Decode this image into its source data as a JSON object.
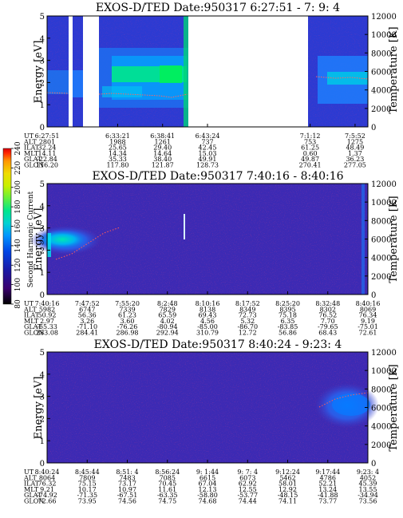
{
  "chart_data": [
    {
      "type": "heatmap",
      "title": "EXOS-D/TED   Date:950317  6:27:51 - 7: 9: 4",
      "ylabel": "Energy [eV]",
      "y2label": "Temperature [K]",
      "ylim": [
        0,
        5
      ],
      "y2lim": [
        0,
        12000
      ],
      "yticks": [
        "0",
        "1",
        "2",
        "3",
        "4",
        "5"
      ],
      "y2ticks": [
        "0",
        "2000",
        "4000",
        "6000",
        "8000",
        "10000",
        "12000"
      ],
      "row_labels": [
        "UT",
        "ALT",
        "ILAT",
        "MLT",
        "GLAT",
        "GLON"
      ],
      "columns": [
        [
          "6:27:51",
          "2801",
          "32.24",
          "14.11",
          "-22.84",
          "116.20"
        ],
        [
          "6:33:21",
          "1988",
          "25.65",
          "14.34",
          "35.33",
          "117.80"
        ],
        [
          "6:38:41",
          "1261",
          "29.40",
          "14.64",
          "38.40",
          "121.87"
        ],
        [
          "6:43:24",
          "737",
          "42.45",
          "15.03",
          "49.91",
          "128.73"
        ],
        [
          "7:1:12",
          "753",
          "61.25",
          "0.60",
          "49.87",
          "270.41"
        ],
        [
          "7:5:52",
          "1275",
          "48.49",
          "1.37",
          "36.23",
          "277.05"
        ]
      ],
      "column_x": [
        0,
        0.22,
        0.36,
        0.5,
        0.82,
        0.96
      ]
    },
    {
      "type": "heatmap",
      "title": "EXOS-D/TED   Date:950317  7:40:16 - 8:40:16",
      "ylabel": "Energy [eV]",
      "y2label": "Temperature [K]",
      "ylim": [
        0,
        5
      ],
      "y2lim": [
        0,
        12000
      ],
      "yticks": [
        "0",
        "1",
        "2",
        "3",
        "4",
        "5"
      ],
      "y2ticks": [
        "0",
        "2000",
        "4000",
        "6000",
        "8000",
        "10000",
        "12000"
      ],
      "row_labels": [
        "UT",
        "ALT",
        "ILAT",
        "MLT",
        "GLAT",
        "GLON"
      ],
      "columns": [
        [
          "7:40:16",
          "5982",
          "50.92",
          "2.97",
          "-65.33",
          "283.08"
        ],
        [
          "7:47:52",
          "6747",
          "56.36",
          "3.26",
          "-71.10",
          "284.41"
        ],
        [
          "7:55:20",
          "7339",
          "61.23",
          "3.60",
          "-76.26",
          "286.98"
        ],
        [
          "8:2:48",
          "7829",
          "65.59",
          "4.02",
          "-80.94",
          "292.94"
        ],
        [
          "8:10:16",
          "8138",
          "69.43",
          "4.56",
          "-85.00",
          "310.79"
        ],
        [
          "8:17:52",
          "8349",
          "72.73",
          "5.32",
          "-86.70",
          "12.72"
        ],
        [
          "8:25:20",
          "8395",
          "75.18",
          "6.35",
          "-83.85",
          "56.86"
        ],
        [
          "8:32:48",
          "8302",
          "76.52",
          "7.70",
          "-79.65",
          "68.43"
        ],
        [
          "8:40:16",
          "8069",
          "76.34",
          "9.19",
          "-75.01",
          "72.61"
        ]
      ],
      "column_x": [
        0,
        0.125,
        0.25,
        0.375,
        0.5,
        0.625,
        0.75,
        0.875,
        1.0
      ]
    },
    {
      "type": "heatmap",
      "title": "EXOS-D/TED   Date:950317  8:40:24 - 9:23: 4",
      "ylabel": "Energy [eV]",
      "y2label": "Temperature [K]",
      "ylim": [
        0,
        5
      ],
      "y2lim": [
        0,
        12000
      ],
      "yticks": [
        "0",
        "1",
        "2",
        "3",
        "4",
        "5"
      ],
      "y2ticks": [
        "0",
        "2000",
        "4000",
        "6000",
        "8000",
        "10000",
        "12000"
      ],
      "row_labels": [
        "UT",
        "ALT",
        "ILAT",
        "MLT",
        "GLAT",
        "GLON"
      ],
      "columns": [
        [
          "8:40:24",
          "8064",
          "76.32",
          "9.21",
          "-74.92",
          "72.66"
        ],
        [
          "8:45:44",
          "7809",
          "75.15",
          "10.17",
          "-71.35",
          "73.95"
        ],
        [
          "8:51: 4",
          "7483",
          "73.17",
          "10.97",
          "-67.51",
          "74.56"
        ],
        [
          "8:56:24",
          "7085",
          "70.45",
          "11.61",
          "-63.35",
          "74.75"
        ],
        [
          "9: 1:44",
          "6615",
          "67.04",
          "12.13",
          "-58.80",
          "74.68"
        ],
        [
          "9: 7: 4",
          "6073",
          "62.92",
          "12.55",
          "-53.77",
          "74.44"
        ],
        [
          "9:12:24",
          "5462",
          "58.01",
          "12.92",
          "-48.15",
          "74.11"
        ],
        [
          "9:17:44",
          "4786",
          "52.21",
          "13.24",
          "-41.88",
          "73.77"
        ],
        [
          "9:23: 4",
          "4052",
          "45.39",
          "13.55",
          "-34.94",
          "73.56"
        ]
      ],
      "column_x": [
        0,
        0.125,
        0.25,
        0.375,
        0.5,
        0.625,
        0.75,
        0.875,
        1.0
      ]
    }
  ],
  "colorbar": {
    "label": "Second Harmonic Current",
    "ticks": [
      "80",
      "100",
      "120",
      "140",
      "160",
      "180",
      "200",
      "220",
      "240"
    ],
    "colors": [
      "#000000",
      "#3a006e",
      "#1a1aa6",
      "#0046e6",
      "#0096ff",
      "#00d2d2",
      "#00e68c",
      "#64f03c",
      "#c8f000",
      "#f0dc00",
      "#ff9600",
      "#ff2800",
      "#dc0000"
    ]
  }
}
